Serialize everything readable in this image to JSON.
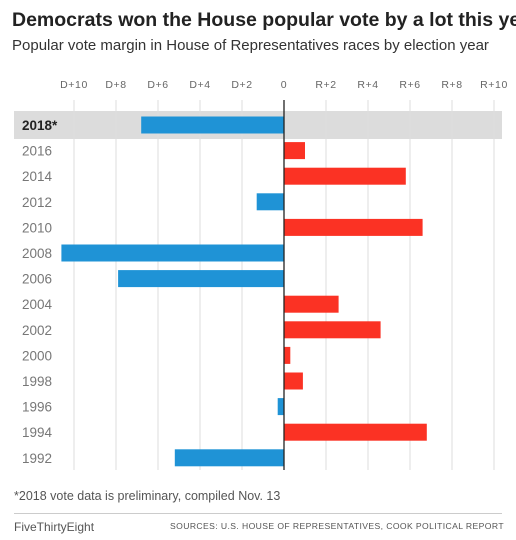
{
  "title": "Democrats won the House popular vote by a lot this year",
  "subtitle": "Popular vote margin in House of Representatives races by election year",
  "footnote": "*2018 vote data is preliminary, compiled Nov. 13",
  "brand": "FiveThirtyEight",
  "source": "SOURCES: U.S. HOUSE OF REPRESENTATIVES, COOK POLITICAL REPORT",
  "colors": {
    "democrat": "#1f93d6",
    "republican": "#fb3224",
    "highlight_band": "#dcdcdc",
    "gridline": "#dedede",
    "zero_line": "#222222"
  },
  "chart_data": {
    "type": "bar",
    "orientation": "horizontal",
    "categories": [
      "2018*",
      "2016",
      "2014",
      "2012",
      "2010",
      "2008",
      "2006",
      "2004",
      "2002",
      "2000",
      "1998",
      "1996",
      "1994",
      "1992"
    ],
    "values": [
      -6.8,
      1.0,
      5.8,
      -1.3,
      6.6,
      -10.6,
      -7.9,
      2.6,
      4.6,
      0.3,
      0.9,
      -0.3,
      6.8,
      -5.2
    ],
    "value_note": "negative = Democratic margin (D+), positive = Republican margin (R+)",
    "xlim": [
      -11,
      10
    ],
    "ticks": [
      -10,
      -8,
      -6,
      -4,
      -2,
      0,
      2,
      4,
      6,
      8,
      10
    ],
    "tick_labels": [
      "D+10",
      "D+8",
      "D+6",
      "D+4",
      "D+2",
      "0",
      "R+2",
      "R+4",
      "R+6",
      "R+8",
      "R+10"
    ],
    "highlight_category": "2018*",
    "grid": true
  }
}
